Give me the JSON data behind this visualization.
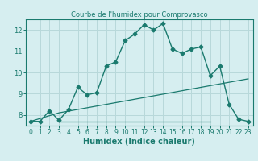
{
  "title": "Courbe de l'humidex pour Comprovasco",
  "xlabel": "Humidex (Indice chaleur)",
  "background_color": "#d6eef0",
  "grid_color": "#b8d8da",
  "line_color": "#1a7a6e",
  "xlim": [
    -0.5,
    23.5
  ],
  "ylim": [
    7.5,
    12.5
  ],
  "xticks": [
    0,
    1,
    2,
    3,
    4,
    5,
    6,
    7,
    8,
    9,
    10,
    11,
    12,
    13,
    14,
    15,
    16,
    17,
    18,
    19,
    20,
    21,
    22,
    23
  ],
  "yticks": [
    8,
    9,
    10,
    11,
    12
  ],
  "curve1_x": [
    0,
    1,
    2,
    3,
    4,
    5,
    6,
    7,
    8,
    9,
    10,
    11,
    12,
    13,
    14,
    15,
    16,
    17,
    18,
    19,
    20,
    21,
    22,
    23
  ],
  "curve1_y": [
    7.7,
    7.7,
    8.2,
    7.75,
    8.25,
    9.3,
    8.95,
    9.05,
    10.3,
    10.5,
    11.5,
    11.8,
    12.25,
    12.0,
    12.3,
    11.1,
    10.9,
    11.1,
    11.2,
    9.85,
    10.3,
    8.5,
    7.8,
    7.7
  ],
  "curve2_x": [
    0,
    3,
    23
  ],
  "curve2_y": [
    7.7,
    8.1,
    9.7
  ],
  "curve3_x": [
    3,
    19
  ],
  "curve3_y": [
    7.7,
    7.7
  ]
}
